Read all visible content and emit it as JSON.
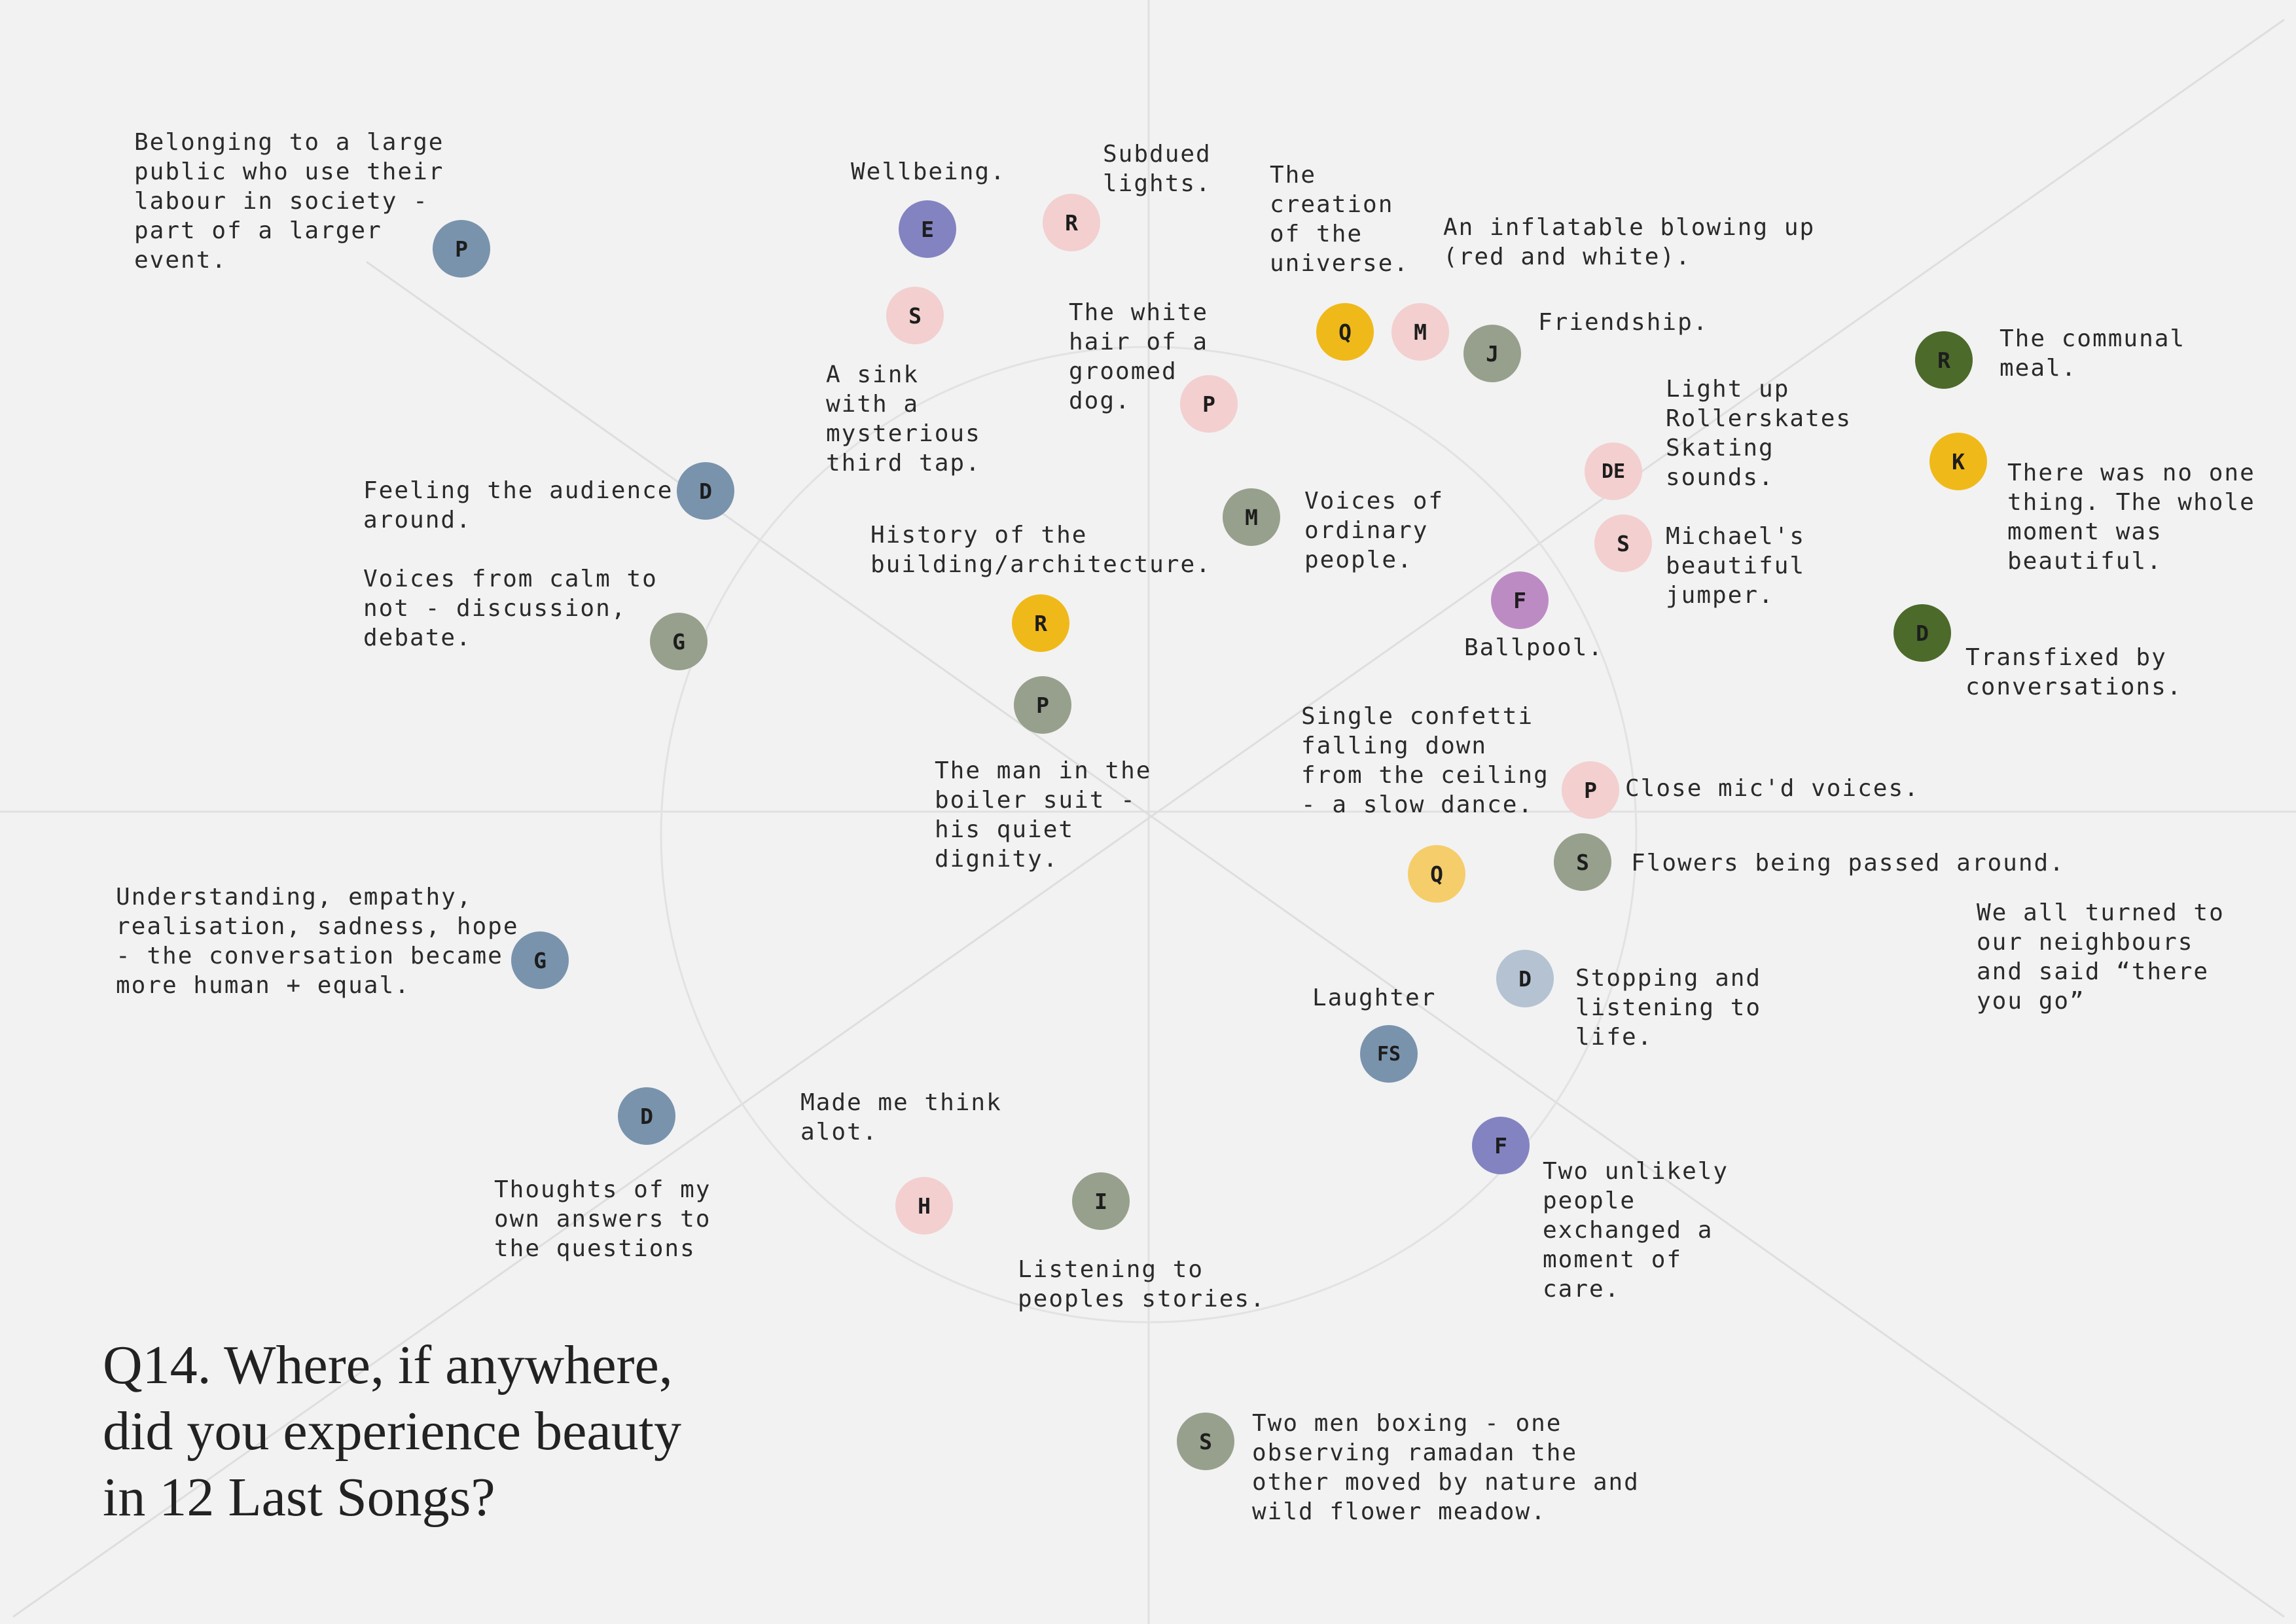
{
  "title": "Q14. Where, if anywhere,\ndid you experience beauty\nin 12 Last Songs?",
  "colors": {
    "slate_blue": "#7993ad",
    "periwinkle": "#8383c2",
    "light_pink": "#f3cfcf",
    "mustard": "#f0b91a",
    "pale_mustard": "#f5cd6a",
    "sage": "#97a08c",
    "forest": "#4c6a2a",
    "purple": "#bd8bc4",
    "pale_blue": "#b4c2d2"
  },
  "respondents": [
    {
      "initial": "P",
      "color": "#7993ad",
      "note": "Belonging to a large\npublic who use their\nlabour in society -\npart of a larger\nevent."
    },
    {
      "initial": "E",
      "color": "#8383c2",
      "note": "Wellbeing."
    },
    {
      "initial": "R",
      "color": "#f3cfcf",
      "note": "Subdued\nlights."
    },
    {
      "initial": "S",
      "color": "#f3cfcf",
      "note": "A sink\nwith a\nmysterious\nthird tap."
    },
    {
      "initial": "P",
      "color": "#f3cfcf",
      "note": "The white\nhair of a\ngroomed\ndog."
    },
    {
      "initial": "Q",
      "color": "#f0b91a",
      "note": "The\ncreation\nof the\nuniverse."
    },
    {
      "initial": "M",
      "color": "#f3cfcf",
      "note": "An inflatable blowing up\n(red and white)."
    },
    {
      "initial": "J",
      "color": "#97a08c",
      "note": "Friendship."
    },
    {
      "initial": "R",
      "color": "#4c6a2a",
      "note": "The communal\nmeal."
    },
    {
      "initial": "DE",
      "color": "#f3cfcf",
      "note": "Light up\nRollerskates\nSkating\nsounds."
    },
    {
      "initial": "K",
      "color": "#f0b91a",
      "note": "There was no one\nthing. The whole\nmoment was\nbeautiful."
    },
    {
      "initial": "D",
      "color": "#7993ad",
      "note": "Feeling the audience\naround."
    },
    {
      "initial": "M",
      "color": "#97a08c",
      "note": "Voices of\nordinary\npeople."
    },
    {
      "initial": "S",
      "color": "#f3cfcf",
      "note": "Michael's\nbeautiful\njumper."
    },
    {
      "initial": "G",
      "color": "#97a08c",
      "note": "Voices from calm to\nnot - discussion,\ndebate."
    },
    {
      "initial": "R",
      "color": "#f0b91a",
      "note": "History of the\nbuilding/architecture."
    },
    {
      "initial": "F",
      "color": "#bd8bc4",
      "note": "Ballpool."
    },
    {
      "initial": "D",
      "color": "#4c6a2a",
      "note": "Transfixed by\nconversations."
    },
    {
      "initial": "P",
      "color": "#97a08c",
      "note": "The man in the\nboiler suit -\nhis quiet\ndignity."
    },
    {
      "initial": "Q",
      "color": "#f5cd6a",
      "note": "Single confetti\nfalling down\nfrom the ceiling\n- a slow dance."
    },
    {
      "initial": "P",
      "color": "#f3cfcf",
      "note": "Close mic'd voices."
    },
    {
      "initial": "S",
      "color": "#97a08c",
      "note": "Flowers being passed around."
    },
    {
      "initial": "",
      "color": "",
      "note": "We all turned to\nour neighbours\nand said “there\nyou go”"
    },
    {
      "initial": "G",
      "color": "#7993ad",
      "note": "Understanding, empathy,\nrealisation, sadness, hope\n- the conversation became\nmore human + equal."
    },
    {
      "initial": "D",
      "color": "#b4c2d2",
      "note": "Stopping and\nlistening to\nlife."
    },
    {
      "initial": "FS",
      "color": "#7993ad",
      "note": "Laughter"
    },
    {
      "initial": "D",
      "color": "#7993ad",
      "note": "Thoughts of my\nown answers to\nthe questions"
    },
    {
      "initial": "H",
      "color": "#f3cfcf",
      "note": "Made me think\nalot."
    },
    {
      "initial": "I",
      "color": "#97a08c",
      "note": "Listening to\npeoples stories."
    },
    {
      "initial": "F",
      "color": "#8383c2",
      "note": "Two unlikely\npeople\nexchanged a\nmoment of\ncare."
    },
    {
      "initial": "S",
      "color": "#97a08c",
      "note": "Two men boxing - one\nobserving ramadan the\nother moved by nature and\nwild flower meadow."
    }
  ]
}
